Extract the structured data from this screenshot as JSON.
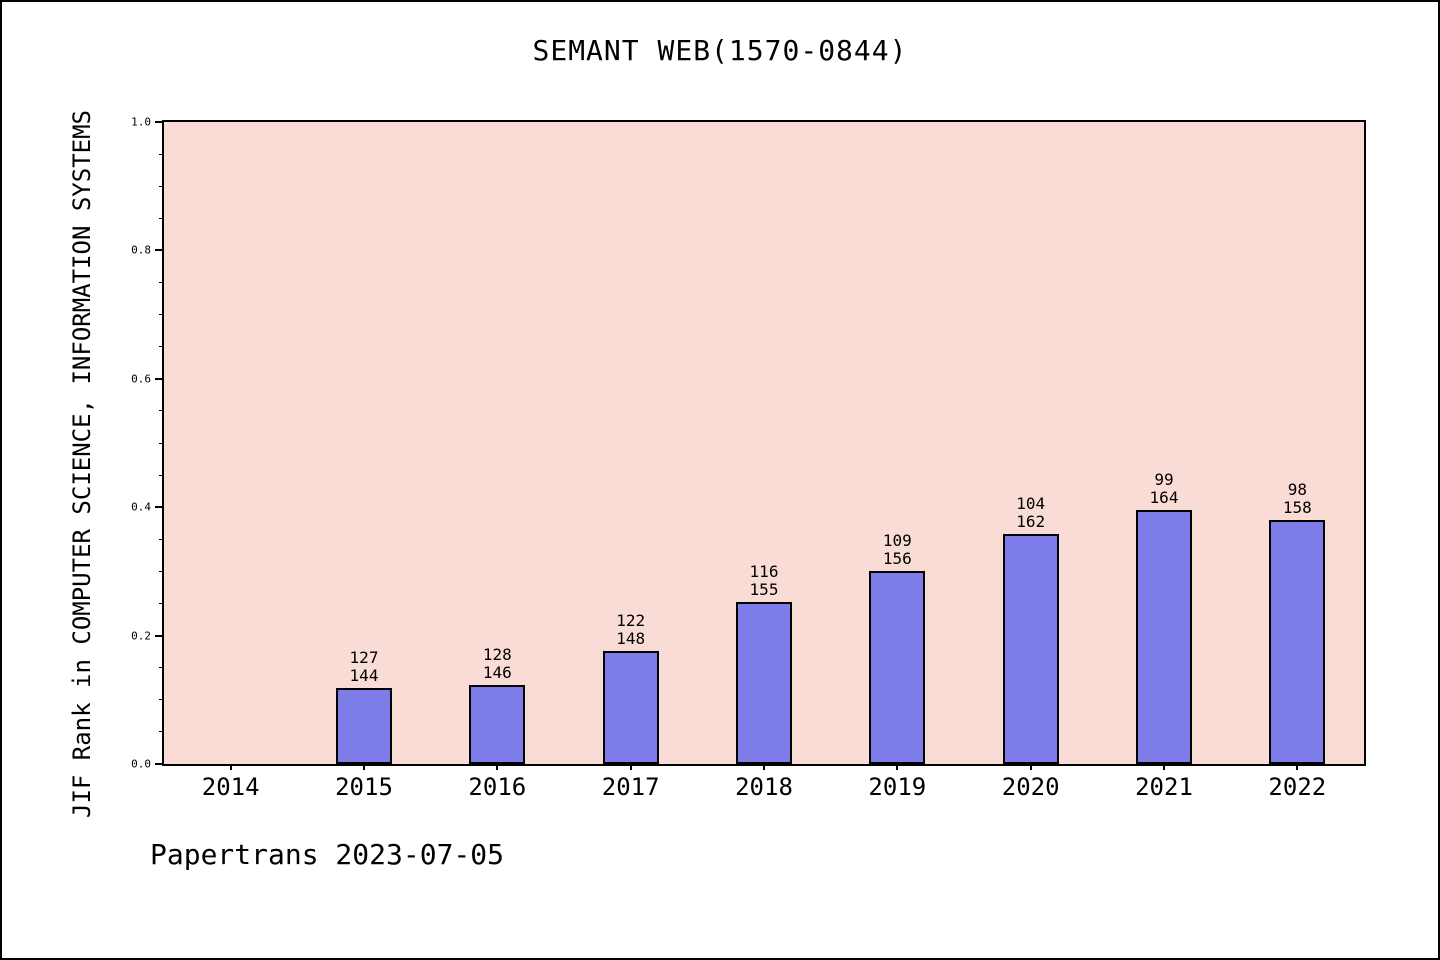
{
  "watermark": "Papertrans 2023-07-05",
  "chart_data": {
    "type": "bar",
    "title": "SEMANT WEB(1570-0844)",
    "xlabel": "",
    "ylabel": "JIF Rank in COMPUTER SCIENCE, INFORMATION SYSTEMS",
    "categories": [
      "2014",
      "2015",
      "2016",
      "2017",
      "2018",
      "2019",
      "2020",
      "2021",
      "2022"
    ],
    "ranks": [
      null,
      127,
      128,
      122,
      116,
      109,
      104,
      99,
      98
    ],
    "totals": [
      null,
      144,
      146,
      148,
      155,
      156,
      162,
      164,
      158
    ],
    "values": [
      null,
      0.118,
      0.123,
      0.176,
      0.252,
      0.301,
      0.358,
      0.396,
      0.38
    ],
    "ylim": [
      0.0,
      1.0
    ],
    "yticks": [
      0.0,
      0.2,
      0.4,
      0.6,
      0.8,
      1.0
    ],
    "minor_tick_step": 0.05,
    "grid": false,
    "legend_position": "none",
    "bar_color": "#7d7ce8",
    "bar_edge_color": "#000000",
    "plot_bg_color": "#fadcd6"
  }
}
